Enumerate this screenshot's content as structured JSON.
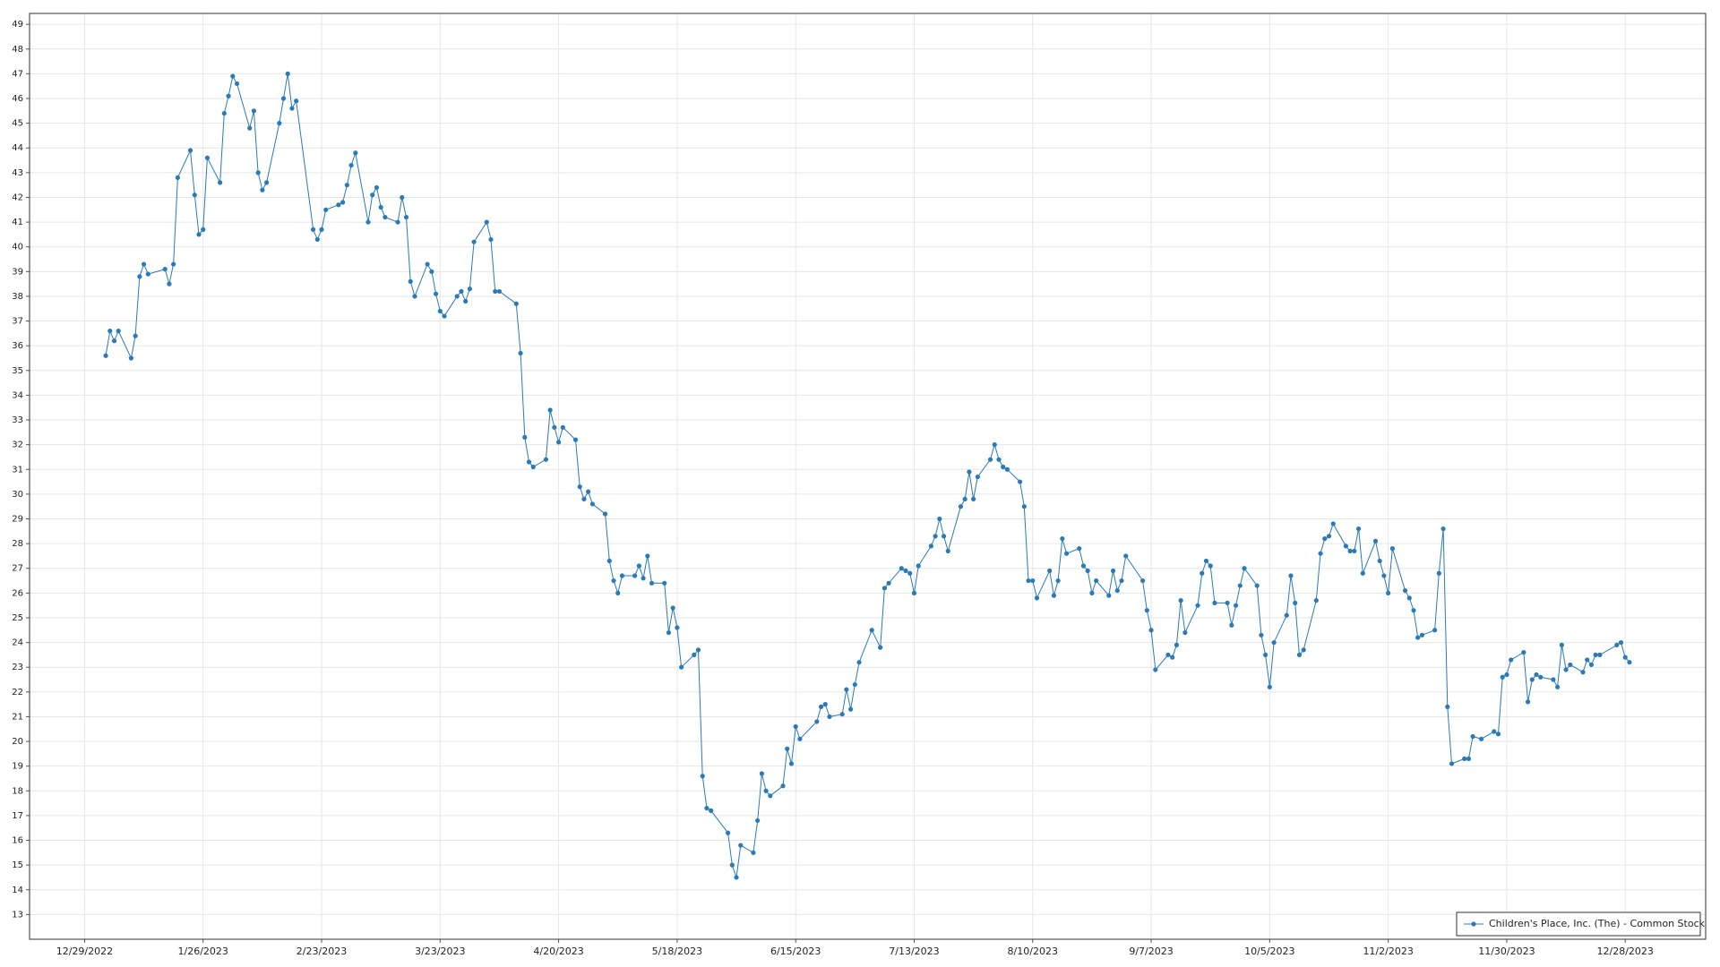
{
  "chart_data": {
    "type": "line",
    "x": [
      "1/3/2023",
      "1/4/2023",
      "1/5/2023",
      "1/6/2023",
      "1/9/2023",
      "1/10/2023",
      "1/11/2023",
      "1/12/2023",
      "1/13/2023",
      "1/17/2023",
      "1/18/2023",
      "1/19/2023",
      "1/20/2023",
      "1/23/2023",
      "1/24/2023",
      "1/25/2023",
      "1/26/2023",
      "1/27/2023",
      "1/30/2023",
      "1/31/2023",
      "2/1/2023",
      "2/2/2023",
      "2/3/2023",
      "2/6/2023",
      "2/7/2023",
      "2/8/2023",
      "2/9/2023",
      "2/10/2023",
      "2/13/2023",
      "2/14/2023",
      "2/15/2023",
      "2/16/2023",
      "2/17/2023",
      "2/21/2023",
      "2/22/2023",
      "2/23/2023",
      "2/24/2023",
      "2/27/2023",
      "2/28/2023",
      "3/1/2023",
      "3/2/2023",
      "3/3/2023",
      "3/6/2023",
      "3/7/2023",
      "3/8/2023",
      "3/9/2023",
      "3/10/2023",
      "3/13/2023",
      "3/14/2023",
      "3/15/2023",
      "3/16/2023",
      "3/17/2023",
      "3/20/2023",
      "3/21/2023",
      "3/22/2023",
      "3/23/2023",
      "3/24/2023",
      "3/27/2023",
      "3/28/2023",
      "3/29/2023",
      "3/30/2023",
      "3/31/2023",
      "4/3/2023",
      "4/4/2023",
      "4/5/2023",
      "4/6/2023",
      "4/10/2023",
      "4/11/2023",
      "4/12/2023",
      "4/13/2023",
      "4/14/2023",
      "4/17/2023",
      "4/18/2023",
      "4/19/2023",
      "4/20/2023",
      "4/21/2023",
      "4/24/2023",
      "4/25/2023",
      "4/26/2023",
      "4/27/2023",
      "4/28/2023",
      "5/1/2023",
      "5/2/2023",
      "5/3/2023",
      "5/4/2023",
      "5/5/2023",
      "5/8/2023",
      "5/9/2023",
      "5/10/2023",
      "5/11/2023",
      "5/12/2023",
      "5/15/2023",
      "5/16/2023",
      "5/17/2023",
      "5/18/2023",
      "5/19/2023",
      "5/22/2023",
      "5/23/2023",
      "5/24/2023",
      "5/25/2023",
      "5/26/2023",
      "5/30/2023",
      "5/31/2023",
      "6/1/2023",
      "6/2/2023",
      "6/5/2023",
      "6/6/2023",
      "6/7/2023",
      "6/8/2023",
      "6/9/2023",
      "6/12/2023",
      "6/13/2023",
      "6/14/2023",
      "6/15/2023",
      "6/16/2023",
      "6/20/2023",
      "6/21/2023",
      "6/22/2023",
      "6/23/2023",
      "6/26/2023",
      "6/27/2023",
      "6/28/2023",
      "6/29/2023",
      "6/30/2023",
      "7/3/2023",
      "7/5/2023",
      "7/6/2023",
      "7/7/2023",
      "7/10/2023",
      "7/11/2023",
      "7/12/2023",
      "7/13/2023",
      "7/14/2023",
      "7/17/2023",
      "7/18/2023",
      "7/19/2023",
      "7/20/2023",
      "7/21/2023",
      "7/24/2023",
      "7/25/2023",
      "7/26/2023",
      "7/27/2023",
      "7/28/2023",
      "7/31/2023",
      "8/1/2023",
      "8/2/2023",
      "8/3/2023",
      "8/4/2023",
      "8/7/2023",
      "8/8/2023",
      "8/9/2023",
      "8/10/2023",
      "8/11/2023",
      "8/14/2023",
      "8/15/2023",
      "8/16/2023",
      "8/17/2023",
      "8/18/2023",
      "8/21/2023",
      "8/22/2023",
      "8/23/2023",
      "8/24/2023",
      "8/25/2023",
      "8/28/2023",
      "8/29/2023",
      "8/30/2023",
      "8/31/2023",
      "9/1/2023",
      "9/5/2023",
      "9/6/2023",
      "9/7/2023",
      "9/8/2023",
      "9/11/2023",
      "9/12/2023",
      "9/13/2023",
      "9/14/2023",
      "9/15/2023",
      "9/18/2023",
      "9/19/2023",
      "9/20/2023",
      "9/21/2023",
      "9/22/2023",
      "9/25/2023",
      "9/26/2023",
      "9/27/2023",
      "9/28/2023",
      "9/29/2023",
      "10/2/2023",
      "10/3/2023",
      "10/4/2023",
      "10/5/2023",
      "10/6/2023",
      "10/9/2023",
      "10/10/2023",
      "10/11/2023",
      "10/12/2023",
      "10/13/2023",
      "10/16/2023",
      "10/17/2023",
      "10/18/2023",
      "10/19/2023",
      "10/20/2023",
      "10/23/2023",
      "10/24/2023",
      "10/25/2023",
      "10/26/2023",
      "10/27/2023",
      "10/30/2023",
      "10/31/2023",
      "11/1/2023",
      "11/2/2023",
      "11/3/2023",
      "11/6/2023",
      "11/7/2023",
      "11/8/2023",
      "11/9/2023",
      "11/10/2023",
      "11/13/2023",
      "11/14/2023",
      "11/15/2023",
      "11/16/2023",
      "11/17/2023",
      "11/20/2023",
      "11/21/2023",
      "11/22/2023",
      "11/24/2023",
      "11/27/2023",
      "11/28/2023",
      "11/29/2023",
      "11/30/2023",
      "12/1/2023",
      "12/4/2023",
      "12/5/2023",
      "12/6/2023",
      "12/7/2023",
      "12/8/2023",
      "12/11/2023",
      "12/12/2023",
      "12/13/2023",
      "12/14/2023",
      "12/15/2023",
      "12/18/2023",
      "12/19/2023",
      "12/20/2023",
      "12/21/2023",
      "12/22/2023",
      "12/26/2023",
      "12/27/2023",
      "12/28/2023",
      "12/29/2023"
    ],
    "series": [
      {
        "name": "Children's Place, Inc. (The) - Common Stock",
        "color": "#2a7ab8",
        "values": [
          35.6,
          36.6,
          36.2,
          36.6,
          35.5,
          36.4,
          38.8,
          39.3,
          38.9,
          39.1,
          38.5,
          39.3,
          42.8,
          43.9,
          42.1,
          40.5,
          40.7,
          43.6,
          42.6,
          45.4,
          46.1,
          46.9,
          46.6,
          44.8,
          45.5,
          43.0,
          42.3,
          42.6,
          45.0,
          46.0,
          47.0,
          45.6,
          45.9,
          40.7,
          40.3,
          40.7,
          41.5,
          41.7,
          41.8,
          42.5,
          43.3,
          43.8,
          41.0,
          42.1,
          42.4,
          41.6,
          41.2,
          41.0,
          42.0,
          41.2,
          38.6,
          38.0,
          39.3,
          39.0,
          38.1,
          37.4,
          37.2,
          38.0,
          38.2,
          37.8,
          38.3,
          40.2,
          41.0,
          40.3,
          38.2,
          38.2,
          37.7,
          35.7,
          32.3,
          31.3,
          31.1,
          31.4,
          33.4,
          32.7,
          32.1,
          32.7,
          32.2,
          30.3,
          29.8,
          30.1,
          29.6,
          29.2,
          27.3,
          26.5,
          26.0,
          26.7,
          26.7,
          27.1,
          26.6,
          27.5,
          26.4,
          26.4,
          24.4,
          25.4,
          24.6,
          23.0,
          23.5,
          23.7,
          18.6,
          17.3,
          17.2,
          16.3,
          15.0,
          14.5,
          15.8,
          15.5,
          16.8,
          18.7,
          18.0,
          17.8,
          18.2,
          19.7,
          19.1,
          20.6,
          20.1,
          20.8,
          21.4,
          21.5,
          21.0,
          21.1,
          22.1,
          21.3,
          22.3,
          23.2,
          24.5,
          23.8,
          26.2,
          26.4,
          27.0,
          26.9,
          26.8,
          26.0,
          27.1,
          27.9,
          28.3,
          29.0,
          28.3,
          27.7,
          29.5,
          29.8,
          30.9,
          29.8,
          30.7,
          31.4,
          32.0,
          31.4,
          31.1,
          31.0,
          30.5,
          29.5,
          26.5,
          26.5,
          25.8,
          26.9,
          25.9,
          26.5,
          28.2,
          27.6,
          27.8,
          27.1,
          26.9,
          26.0,
          26.5,
          25.9,
          26.9,
          26.1,
          26.5,
          27.5,
          26.5,
          25.3,
          24.5,
          22.9,
          23.5,
          23.4,
          23.9,
          25.7,
          24.4,
          25.5,
          26.8,
          27.3,
          27.1,
          25.6,
          25.6,
          24.7,
          25.5,
          26.3,
          27.0,
          26.3,
          24.3,
          23.5,
          22.2,
          24.0,
          25.1,
          26.7,
          25.6,
          23.5,
          23.7,
          25.7,
          27.6,
          28.2,
          28.3,
          28.8,
          27.9,
          27.7,
          27.7,
          28.6,
          26.8,
          28.1,
          27.3,
          26.7,
          26.0,
          27.8,
          26.1,
          25.8,
          25.3,
          24.2,
          24.3,
          24.5,
          26.8,
          28.6,
          21.4,
          19.1,
          19.3,
          19.3,
          20.2,
          20.1,
          20.4,
          20.3,
          22.6,
          22.7,
          23.3,
          23.6,
          21.6,
          22.5,
          22.7,
          22.6,
          22.5,
          22.2,
          23.9,
          22.9,
          23.1,
          22.8,
          23.3,
          23.1,
          23.5,
          23.5,
          23.9,
          24.0,
          23.4,
          23.2
        ]
      }
    ],
    "xlim": [
      "12/16/2022",
      "1/16/2024"
    ],
    "xticks": [
      "12/29/2022",
      "1/26/2023",
      "2/23/2023",
      "3/23/2023",
      "4/20/2023",
      "5/18/2023",
      "6/15/2023",
      "7/13/2023",
      "8/10/2023",
      "9/7/2023",
      "10/5/2023",
      "11/2/2023",
      "11/30/2023",
      "12/28/2023"
    ],
    "ylim": [
      12,
      49.44
    ],
    "yticks": [
      13,
      14,
      15,
      16,
      17,
      18,
      19,
      20,
      21,
      22,
      23,
      24,
      25,
      26,
      27,
      28,
      29,
      30,
      31,
      32,
      33,
      34,
      35,
      36,
      37,
      38,
      39,
      40,
      41,
      42,
      43,
      44,
      45,
      46,
      47,
      48,
      49
    ],
    "grid": true,
    "legend": "lower right"
  }
}
